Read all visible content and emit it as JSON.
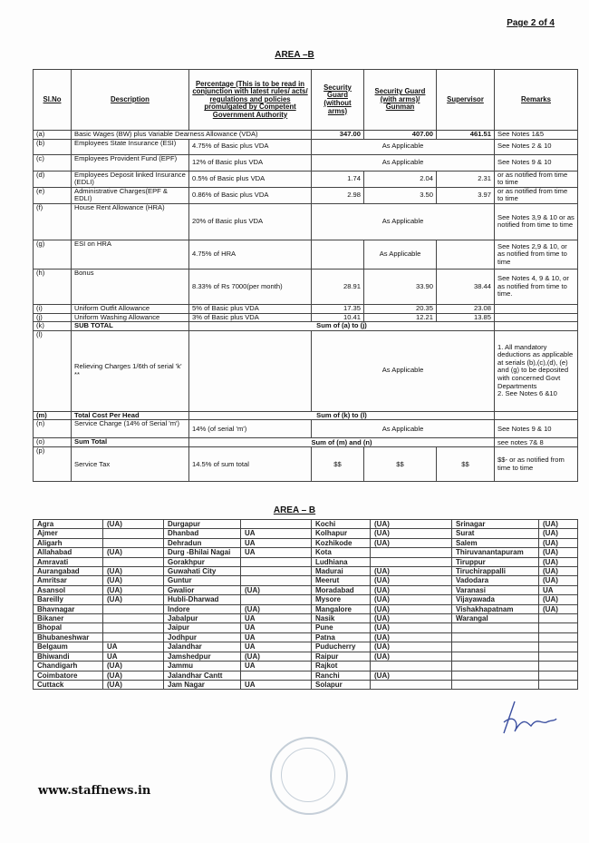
{
  "page_label": "Page 2 of 4",
  "area_title": "AREA –B",
  "table1": {
    "headers": [
      "Sl.No",
      "Description",
      "Percentage (This is to be read in conjunction with latest rules/ acts/ regulations and policies promulgated by Competent Government Authority",
      "Security Guard (without arms)",
      "Security Guard (with arms)/ Gunman",
      "Supervisor",
      "Remarks"
    ],
    "rows": [
      {
        "sl": "(a)",
        "desc": "Basic Wages (BW) plus Variable Dearness Allowance (VDA)",
        "type": "descspan",
        "vals": [
          "347.00",
          "407.00",
          "461.51"
        ],
        "remarks": "See Notes 1&5"
      },
      {
        "sl": "(b)",
        "desc": "Employees State Insurance (ESI)",
        "pct": "4.75% of Basic plus VDA",
        "type": "merged",
        "merged": "As Applicable",
        "remarks": "See Notes  2 & 10"
      },
      {
        "sl": "(c)",
        "desc": "Employees Provident Fund (EPF)",
        "pct": "12% of Basic plus VDA",
        "type": "merged",
        "merged": "As Applicable",
        "remarks": "See Notes 9 & 10"
      },
      {
        "sl": "(d)",
        "desc": "Employees Deposit linked Insurance (EDLI)",
        "pct": "0.5% of Basic plus VDA",
        "type": "vals",
        "vals": [
          "1.74",
          "2.04",
          "2.31"
        ],
        "remarks": "or as notified from time to time"
      },
      {
        "sl": "(e)",
        "desc": "Administrative Charges(EPF & EDLI)",
        "pct": "0.86% of Basic plus VDA",
        "type": "vals",
        "vals": [
          "2.98",
          "3.50",
          "3.97"
        ],
        "remarks": "or as notified from time to time"
      },
      {
        "sl": "(f)",
        "desc": "House Rent Allowance (HRA)",
        "pct": "20% of Basic plus VDA",
        "type": "merged",
        "merged": "As Applicable",
        "remarks": "See Notes  3,9 & 10 or as notified from time to time"
      },
      {
        "sl": "(g)",
        "desc": "ESI on HRA",
        "pct": "4.75% of HRA",
        "type": "vals",
        "vals": [
          "",
          "As Applicable",
          ""
        ],
        "remarks": "See Notes  2,9 & 10, or as notified from time to time"
      },
      {
        "sl": "(h)",
        "desc": "Bonus",
        "pct": "8.33% of Rs 7000(per month)",
        "type": "vals",
        "vals": [
          "28.91",
          "33.90",
          "38.44"
        ],
        "remarks": "See Notes 4, 9 & 10, or as notified from time to time."
      },
      {
        "sl": "(i)",
        "desc": "Uniform Outfit Allowance",
        "pct": "5% of Basic plus VDA",
        "type": "vals",
        "vals": [
          "17.35",
          "20.35",
          "23.08"
        ],
        "remarks": ""
      },
      {
        "sl": "(j)",
        "desc": "Uniform Washing Allowance",
        "pct": "3% of Basic plus VDA",
        "type": "vals",
        "vals": [
          "10.41",
          "12.21",
          "13.85"
        ],
        "remarks": ""
      },
      {
        "sl": "(k)",
        "desc": "SUB TOTAL",
        "type": "sum",
        "merged": "Sum of (a) to (j)",
        "remarks": "",
        "bold": true
      },
      {
        "sl": "(l)",
        "desc": "Relieving Charges  1/6th of serial 'k' **",
        "pct": "",
        "type": "merged",
        "merged": "As Applicable",
        "remarks": "1. All mandatory deductions as applicable at serials (b),(c),(d), (e) and (g) to be deposited with concerned Govt Departments\n2.  See Notes 6 &10"
      },
      {
        "sl": "(m)",
        "desc": "Total Cost Per Head",
        "type": "sum",
        "merged": "Sum of (k) to  (l)",
        "remarks": "",
        "bold": true,
        "boldsl": true
      },
      {
        "sl": "(n)",
        "desc": "Service Charge (14% of Serial 'm')",
        "pct": "14% (of serial 'm')",
        "type": "merged",
        "merged": "As Applicable",
        "remarks": "See Notes 9 & 10"
      },
      {
        "sl": "(o)",
        "desc": "Sum Total",
        "type": "sum",
        "merged": "Sum of (m) and (n)",
        "remarks": "see notes  7& 8",
        "bold": true
      },
      {
        "sl": "(p)",
        "desc": "Service Tax",
        "pct": "14.5%  of sum total",
        "type": "vals",
        "vals": [
          "$$",
          "$$",
          "$$"
        ],
        "remarks": "$$- or as notified from time to time",
        "ctrvals": true
      }
    ]
  },
  "area_title2": "AREA – B",
  "cities": [
    [
      "Agra",
      "(UA)",
      "Durgapur",
      "",
      "Kochi",
      "(UA)",
      "Srinagar",
      "(UA)"
    ],
    [
      "Ajmer",
      "",
      "Dhanbad",
      "UA",
      "Kolhapur",
      "(UA)",
      "Surat",
      "(UA)"
    ],
    [
      "Aligarh",
      "",
      "Dehradun",
      "UA",
      "Kozhikode",
      "(UA)",
      "Salem",
      "(UA)"
    ],
    [
      "Allahabad",
      "(UA)",
      "Durg -Bhilai Nagai",
      "UA",
      "Kota",
      "",
      "Thiruvanantapuram",
      "(UA)"
    ],
    [
      "Amravati",
      "",
      "Gorakhpur",
      "",
      "Ludhiana",
      "",
      "Tiruppur",
      "(UA)"
    ],
    [
      "Aurangabad",
      "(UA)",
      "Guwahati City",
      "",
      "Madurai",
      "(UA)",
      "Tiruchirappalli",
      "(UA)"
    ],
    [
      "Amritsar",
      "(UA)",
      "Guntur",
      "",
      "Meerut",
      "(UA)",
      "Vadodara",
      "(UA)"
    ],
    [
      "Asansol",
      "(UA)",
      "Gwalior",
      "(UA)",
      "Moradabad",
      "(UA)",
      "Varanasi",
      "UA"
    ],
    [
      "Bareilly",
      "(UA)",
      "Hubli-Dharwad",
      "",
      "Mysore",
      "(UA)",
      "Vijayawada",
      "(UA)"
    ],
    [
      "Bhavnagar",
      "",
      "Indore",
      "(UA)",
      "Mangalore",
      "(UA)",
      "Vishakhapatnam",
      "(UA)"
    ],
    [
      "Bikaner",
      "",
      "Jabalpur",
      "UA",
      "Nasik",
      "(UA)",
      "Warangal",
      ""
    ],
    [
      "Bhopal",
      "",
      "Jaipur",
      "UA",
      "Pune",
      "(UA)",
      "",
      ""
    ],
    [
      "Bhubaneshwar",
      "",
      "Jodhpur",
      "UA",
      "Patna",
      "(UA)",
      "",
      ""
    ],
    [
      "Belgaum",
      "UA",
      "Jalandhar",
      "UA",
      "Puducherry",
      "(UA)",
      "",
      ""
    ],
    [
      "Bhiwandi",
      "UA",
      "Jamshedpur",
      "(UA)",
      "Raipur",
      "(UA)",
      "",
      ""
    ],
    [
      "Chandigarh",
      "(UA)",
      "Jammu",
      "UA",
      "Rajkot",
      "",
      "",
      ""
    ],
    [
      "Coimbatore",
      "(UA)",
      "Jalandhar Cantt",
      "",
      "Ranchi",
      "(UA)",
      "",
      ""
    ],
    [
      "Cuttack",
      "(UA)",
      "Jam Nagar",
      "UA",
      "Solapur",
      "",
      "",
      ""
    ]
  ],
  "watermark": "www.staffnews.in",
  "colors": {
    "ink": "#111111",
    "stamp": "#99aabb",
    "signature": "#3b4fa0"
  }
}
